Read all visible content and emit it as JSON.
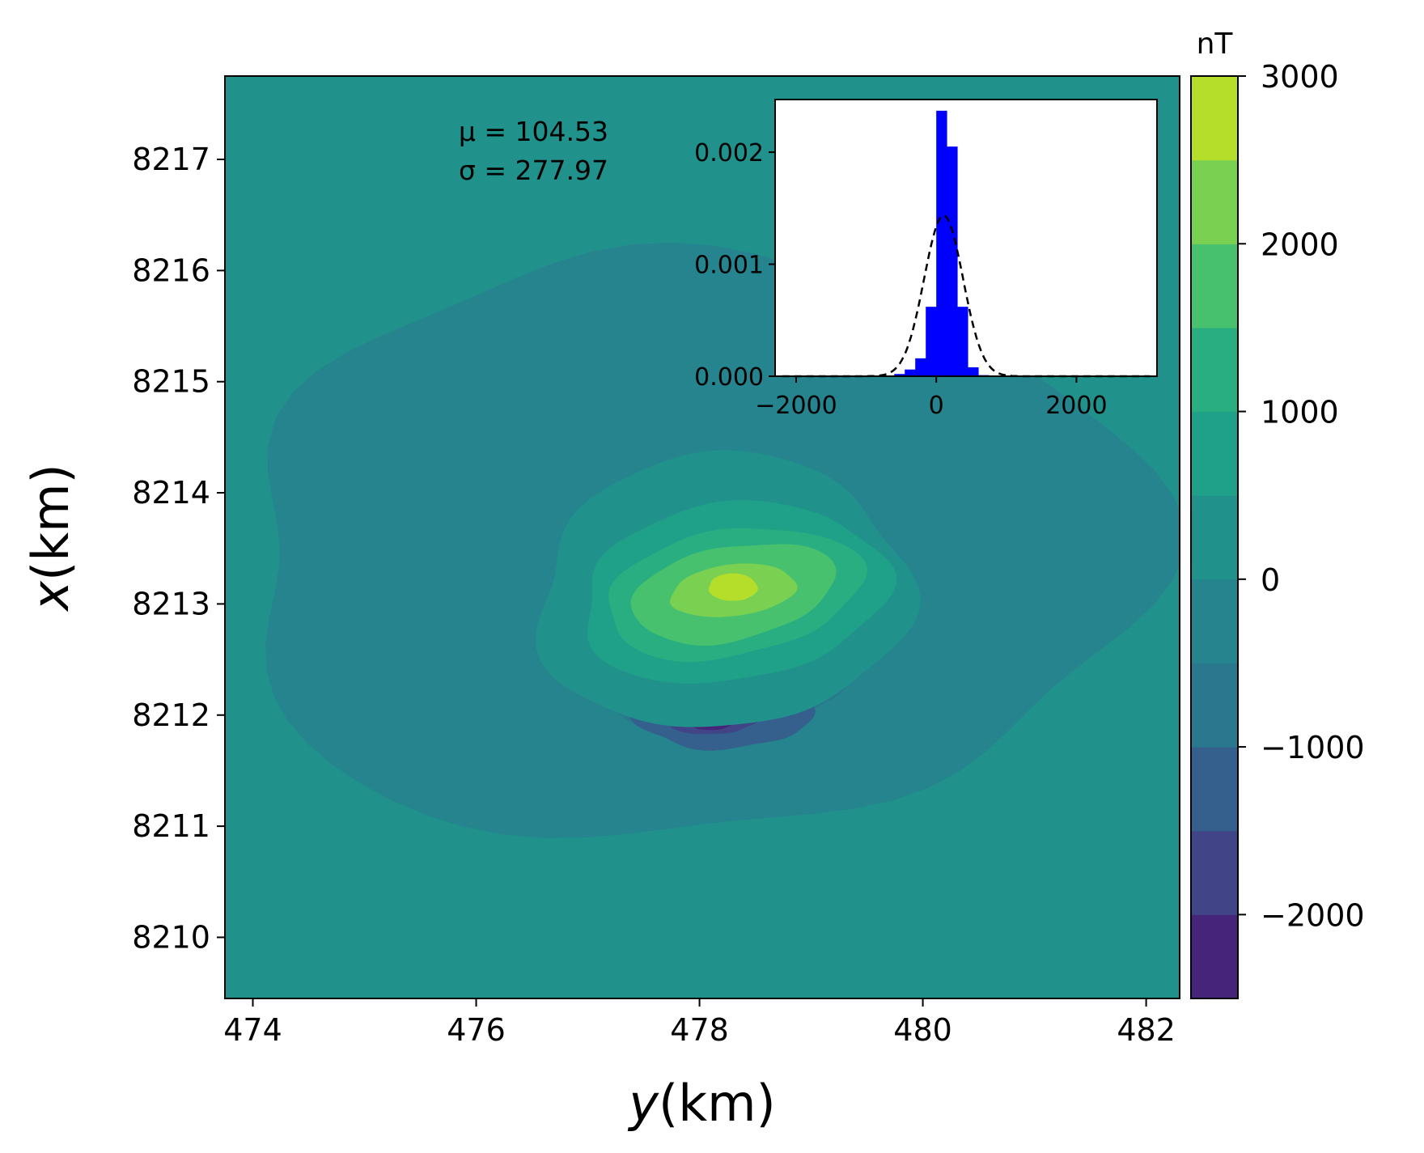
{
  "chart_data": [
    {
      "type": "contour",
      "xlabel_prefix": "y",
      "xlabel_suffix": "(km)",
      "ylabel_prefix": "x",
      "ylabel_suffix": "(km)",
      "xlim": [
        473.75,
        482.3
      ],
      "ylim": [
        8209.45,
        8217.75
      ],
      "xticks": [
        474,
        476,
        478,
        480,
        482
      ],
      "yticks": [
        8210,
        8211,
        8212,
        8213,
        8214,
        8215,
        8216,
        8217
      ],
      "colorbar": {
        "unit": "nT",
        "range": [
          -2500,
          3000
        ],
        "levels": [
          -2500,
          -2000,
          -1500,
          -1000,
          -500,
          0,
          500,
          1000,
          1500,
          2000,
          2500,
          3000
        ],
        "colors": [
          "#46247a",
          "#414487",
          "#355f8d",
          "#2a788e",
          "#25848e",
          "#21918c",
          "#1fa088",
          "#28ae80",
          "#48c16e",
          "#7ad151",
          "#b5de2b",
          "#eae51a"
        ],
        "ticks": [
          -2000,
          -1000,
          0,
          1000,
          2000,
          3000
        ],
        "tick_labels": [
          "−2000",
          "−1000",
          "0",
          "1000",
          "2000",
          "3000"
        ]
      },
      "background_color": "#21918c",
      "anomaly": {
        "peak_value_approx": 2800,
        "peak_location": [
          478.3,
          8213.15
        ],
        "trough_value_approx": -2300,
        "trough_location": [
          478.1,
          8211.95
        ]
      }
    },
    {
      "type": "histogram",
      "xlim": [
        -2300,
        3150
      ],
      "ylim": [
        0,
        0.00247
      ],
      "xticks": [
        -2000,
        0,
        2000
      ],
      "xtick_labels": [
        "−2000",
        "0",
        "2000"
      ],
      "yticks": [
        0,
        0.001,
        0.002
      ],
      "ytick_labels": [
        "0.000",
        "0.001",
        "0.002"
      ],
      "bar_color": "#0000ff",
      "bin_width": 150,
      "bins": [
        {
          "x0": -600,
          "density": 2e-05
        },
        {
          "x0": -450,
          "density": 6e-05
        },
        {
          "x0": -300,
          "density": 0.00016
        },
        {
          "x0": -150,
          "density": 0.00062
        },
        {
          "x0": 0,
          "density": 0.00237
        },
        {
          "x0": 150,
          "density": 0.00205
        },
        {
          "x0": 300,
          "density": 0.00062
        },
        {
          "x0": 450,
          "density": 8e-05
        },
        {
          "x0": 600,
          "density": 1e-05
        }
      ],
      "fit": {
        "type": "normal",
        "mean": 104.53,
        "std": 277.97,
        "style": "dashed",
        "color": "#000000"
      }
    }
  ],
  "annotation": {
    "mu_text": "μ = 104.53",
    "sigma_text": "σ = 277.97"
  }
}
